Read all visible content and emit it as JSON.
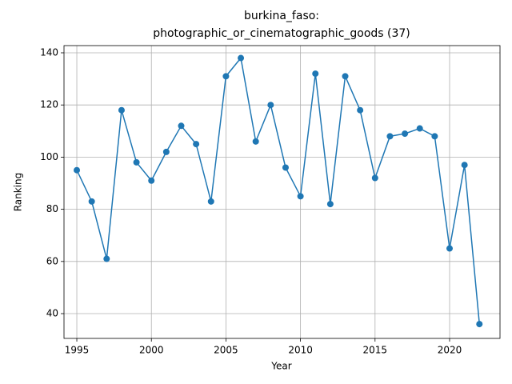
{
  "chart_data": {
    "type": "line",
    "title": [
      "burkina_faso:",
      "photographic_or_cinematographic_goods (37)"
    ],
    "x_label": "Year",
    "y_label": "Ranking",
    "x": [
      1995,
      1996,
      1997,
      1998,
      1999,
      2000,
      2001,
      2002,
      2003,
      2004,
      2005,
      2006,
      2007,
      2008,
      2009,
      2010,
      2011,
      2012,
      2013,
      2014,
      2015,
      2016,
      2017,
      2018,
      2019,
      2020,
      2021,
      2022
    ],
    "values": [
      95,
      83,
      61,
      118,
      98,
      91,
      102,
      112,
      105,
      83,
      131,
      138,
      106,
      120,
      96,
      85,
      132,
      82,
      131,
      118,
      92,
      108,
      109,
      111,
      108,
      65,
      97,
      36
    ],
    "color": "#1f77b4",
    "xlim": [
      1994.14,
      2023.38
    ],
    "xticks": [
      1995,
      2000,
      2005,
      2010,
      2015,
      2020
    ],
    "ylim": [
      30.5,
      142.76
    ],
    "yticks": [
      40,
      60,
      80,
      100,
      120,
      140
    ],
    "grid": true
  }
}
